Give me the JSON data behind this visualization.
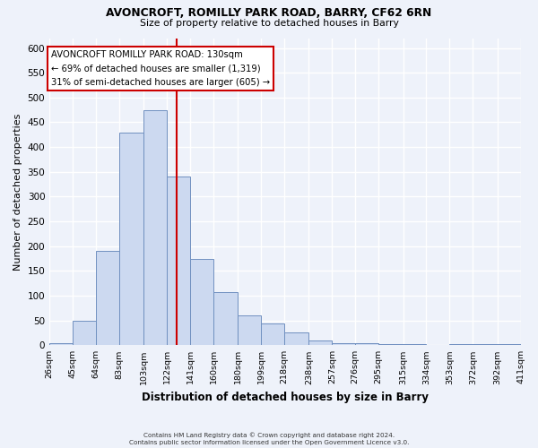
{
  "title1": "AVONCROFT, ROMILLY PARK ROAD, BARRY, CF62 6RN",
  "title2": "Size of property relative to detached houses in Barry",
  "xlabel": "Distribution of detached houses by size in Barry",
  "ylabel": "Number of detached properties",
  "bar_edges": [
    26,
    45,
    64,
    83,
    103,
    122,
    141,
    160,
    180,
    199,
    218,
    238,
    257,
    276,
    295,
    315,
    334,
    353,
    372,
    392,
    411
  ],
  "bar_heights": [
    5,
    50,
    190,
    430,
    475,
    340,
    175,
    108,
    60,
    44,
    25,
    10,
    4,
    4,
    2,
    2,
    0,
    2,
    2,
    2
  ],
  "bar_color": "#ccd9f0",
  "bar_edge_color": "#7090c0",
  "ylim": [
    0,
    620
  ],
  "yticks": [
    0,
    50,
    100,
    150,
    200,
    250,
    300,
    350,
    400,
    450,
    500,
    550,
    600
  ],
  "vline_x": 130,
  "vline_color": "#cc0000",
  "annotation_title": "AVONCROFT ROMILLY PARK ROAD: 130sqm",
  "annotation_line1": "← 69% of detached houses are smaller (1,319)",
  "annotation_line2": "31% of semi-detached houses are larger (605) →",
  "annotation_box_color": "#ffffff",
  "annotation_box_edge": "#cc0000",
  "footer1": "Contains HM Land Registry data © Crown copyright and database right 2024.",
  "footer2": "Contains public sector information licensed under the Open Government Licence v3.0.",
  "tick_labels": [
    "26sqm",
    "45sqm",
    "64sqm",
    "83sqm",
    "103sqm",
    "122sqm",
    "141sqm",
    "160sqm",
    "180sqm",
    "199sqm",
    "218sqm",
    "238sqm",
    "257sqm",
    "276sqm",
    "295sqm",
    "315sqm",
    "334sqm",
    "353sqm",
    "372sqm",
    "392sqm",
    "411sqm"
  ],
  "background_color": "#eef2fa"
}
